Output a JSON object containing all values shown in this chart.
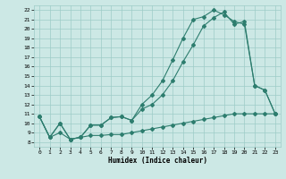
{
  "line1_x": [
    0,
    1,
    2,
    3,
    4,
    5,
    6,
    7,
    8,
    9,
    10,
    11,
    12,
    13,
    14,
    15,
    16,
    17,
    18,
    19,
    20,
    21,
    22,
    23
  ],
  "line1_y": [
    10.7,
    8.5,
    10.0,
    8.3,
    8.5,
    9.8,
    9.8,
    10.6,
    10.7,
    10.3,
    11.5,
    12.0,
    13.0,
    14.5,
    16.5,
    18.3,
    20.3,
    21.2,
    21.8,
    20.5,
    20.8,
    14.0,
    13.5,
    11.0
  ],
  "line2_x": [
    0,
    1,
    2,
    3,
    4,
    5,
    6,
    7,
    8,
    9,
    10,
    11,
    12,
    13,
    14,
    15,
    16,
    17,
    18,
    19,
    20,
    21,
    22,
    23
  ],
  "line2_y": [
    10.7,
    8.5,
    10.0,
    8.3,
    8.5,
    9.8,
    9.8,
    10.6,
    10.7,
    10.3,
    12.0,
    13.0,
    14.5,
    16.7,
    19.0,
    21.0,
    21.3,
    22.0,
    21.5,
    20.8,
    20.5,
    14.0,
    13.5,
    11.0
  ],
  "line3_x": [
    0,
    1,
    2,
    3,
    4,
    5,
    6,
    7,
    8,
    9,
    10,
    11,
    12,
    13,
    14,
    15,
    16,
    17,
    18,
    19,
    20,
    21,
    22,
    23
  ],
  "line3_y": [
    10.7,
    8.5,
    9.0,
    8.3,
    8.5,
    8.7,
    8.7,
    8.8,
    8.8,
    9.0,
    9.2,
    9.4,
    9.6,
    9.8,
    10.0,
    10.2,
    10.4,
    10.6,
    10.8,
    11.0,
    11.0,
    11.0,
    11.0,
    11.0
  ],
  "line_color": "#2d7d6e",
  "bg_color": "#cce8e5",
  "grid_color": "#9eccc7",
  "xlabel": "Humidex (Indice chaleur)",
  "xlim": [
    0,
    23
  ],
  "ylim": [
    7.5,
    22.5
  ],
  "xticks": [
    0,
    1,
    2,
    3,
    4,
    5,
    6,
    7,
    8,
    9,
    10,
    11,
    12,
    13,
    14,
    15,
    16,
    17,
    18,
    19,
    20,
    21,
    22,
    23
  ],
  "yticks": [
    8,
    9,
    10,
    11,
    12,
    13,
    14,
    15,
    16,
    17,
    18,
    19,
    20,
    21,
    22
  ],
  "marker": "D",
  "markersize": 2.0,
  "linewidth": 0.8
}
